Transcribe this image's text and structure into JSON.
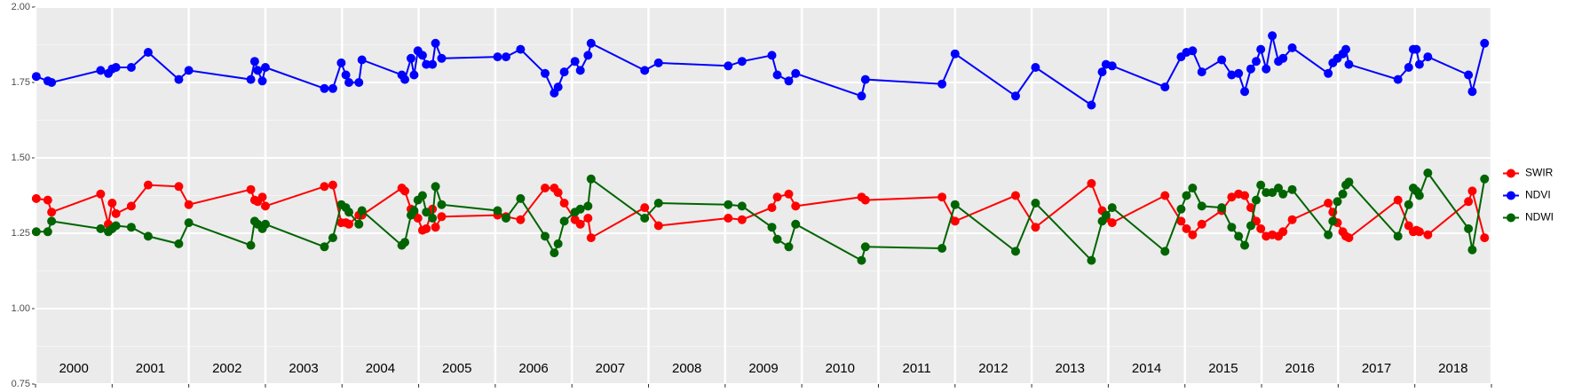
{
  "chart_data": {
    "type": "line",
    "x": [
      2000.01,
      2000.16,
      2000.21,
      2000.85,
      2000.95,
      2001.0,
      2001.05,
      2001.25,
      2001.47,
      2001.87,
      2002.0,
      2002.81,
      2002.86,
      2002.9,
      2002.96,
      2003.0,
      2003.77,
      2003.88,
      2003.99,
      2004.05,
      2004.09,
      2004.22,
      2004.26,
      2004.78,
      2004.82,
      2004.9,
      2004.94,
      2004.99,
      2005.05,
      2005.1,
      2005.18,
      2005.22,
      2005.3,
      2006.03,
      2006.14,
      2006.33,
      2006.65,
      2006.77,
      2006.82,
      2006.9,
      2007.04,
      2007.11,
      2007.21,
      2007.25,
      2007.95,
      2008.13,
      2009.04,
      2009.22,
      2009.61,
      2009.68,
      2009.83,
      2009.92,
      2010.78,
      2010.83,
      2011.83,
      2012.0,
      2012.79,
      2013.05,
      2013.78,
      2013.92,
      2013.97,
      2014.05,
      2014.74,
      2014.95,
      2015.02,
      2015.1,
      2015.22,
      2015.48,
      2015.61,
      2015.7,
      2015.78,
      2015.86,
      2015.93,
      2015.99,
      2016.06,
      2016.14,
      2016.22,
      2016.28,
      2016.4,
      2016.87,
      2016.93,
      2016.99,
      2017.06,
      2017.1,
      2017.14,
      2017.78,
      2017.92,
      2017.98,
      2018.02,
      2018.06,
      2018.17,
      2018.7,
      2018.75,
      2018.91
    ],
    "series": [
      {
        "name": "SWIR",
        "color": "#ff0000",
        "values": [
          1.365,
          1.36,
          1.32,
          1.38,
          1.28,
          1.35,
          1.315,
          1.34,
          1.41,
          1.405,
          1.345,
          1.395,
          1.36,
          1.355,
          1.37,
          1.34,
          1.405,
          1.41,
          1.285,
          1.285,
          1.28,
          1.31,
          1.31,
          1.4,
          1.39,
          1.33,
          1.32,
          1.3,
          1.26,
          1.265,
          1.33,
          1.27,
          1.305,
          1.31,
          1.305,
          1.295,
          1.4,
          1.4,
          1.385,
          1.35,
          1.295,
          1.28,
          1.3,
          1.235,
          1.335,
          1.275,
          1.3,
          1.295,
          1.335,
          1.37,
          1.38,
          1.34,
          1.37,
          1.36,
          1.37,
          1.29,
          1.375,
          1.27,
          1.415,
          1.325,
          1.3,
          1.285,
          1.375,
          1.29,
          1.265,
          1.245,
          1.28,
          1.325,
          1.37,
          1.38,
          1.375,
          1.335,
          1.29,
          1.265,
          1.24,
          1.245,
          1.24,
          1.255,
          1.295,
          1.35,
          1.32,
          1.285,
          1.255,
          1.24,
          1.235,
          1.36,
          1.275,
          1.255,
          1.26,
          1.255,
          1.245,
          1.355,
          1.39,
          1.235
        ]
      },
      {
        "name": "NDVI",
        "color": "#0000ff",
        "values": [
          1.77,
          1.755,
          1.75,
          1.79,
          1.78,
          1.795,
          1.8,
          1.8,
          1.85,
          1.76,
          1.79,
          1.76,
          1.82,
          1.79,
          1.755,
          1.8,
          1.73,
          1.73,
          1.815,
          1.775,
          1.75,
          1.75,
          1.825,
          1.775,
          1.76,
          1.83,
          1.775,
          1.855,
          1.84,
          1.81,
          1.81,
          1.88,
          1.83,
          1.835,
          1.835,
          1.86,
          1.78,
          1.715,
          1.735,
          1.785,
          1.82,
          1.79,
          1.84,
          1.88,
          1.79,
          1.815,
          1.805,
          1.82,
          1.84,
          1.775,
          1.755,
          1.78,
          1.705,
          1.76,
          1.745,
          1.845,
          1.705,
          1.8,
          1.675,
          1.785,
          1.81,
          1.805,
          1.735,
          1.835,
          1.85,
          1.855,
          1.785,
          1.825,
          1.775,
          1.78,
          1.72,
          1.795,
          1.82,
          1.86,
          1.795,
          1.905,
          1.82,
          1.83,
          1.865,
          1.78,
          1.815,
          1.83,
          1.845,
          1.86,
          1.81,
          1.76,
          1.8,
          1.86,
          1.86,
          1.81,
          1.835,
          1.775,
          1.72,
          1.88
        ]
      },
      {
        "name": "NDWI",
        "color": "#006400",
        "values": [
          1.255,
          1.255,
          1.29,
          1.265,
          1.255,
          1.265,
          1.275,
          1.27,
          1.24,
          1.215,
          1.285,
          1.21,
          1.29,
          1.28,
          1.265,
          1.28,
          1.205,
          1.235,
          1.345,
          1.335,
          1.32,
          1.28,
          1.325,
          1.21,
          1.22,
          1.31,
          1.325,
          1.36,
          1.375,
          1.32,
          1.3,
          1.405,
          1.345,
          1.325,
          1.3,
          1.365,
          1.24,
          1.185,
          1.215,
          1.29,
          1.32,
          1.33,
          1.34,
          1.43,
          1.3,
          1.35,
          1.345,
          1.34,
          1.27,
          1.23,
          1.205,
          1.28,
          1.16,
          1.205,
          1.2,
          1.345,
          1.19,
          1.35,
          1.16,
          1.29,
          1.31,
          1.335,
          1.19,
          1.33,
          1.375,
          1.4,
          1.34,
          1.335,
          1.27,
          1.24,
          1.21,
          1.275,
          1.36,
          1.41,
          1.385,
          1.385,
          1.4,
          1.38,
          1.395,
          1.245,
          1.29,
          1.355,
          1.38,
          1.41,
          1.42,
          1.24,
          1.345,
          1.4,
          1.39,
          1.375,
          1.45,
          1.265,
          1.195,
          1.43
        ]
      }
    ],
    "xlim": [
      2000,
      2019
    ],
    "xticks": [
      2000,
      2001,
      2002,
      2003,
      2004,
      2005,
      2006,
      2007,
      2008,
      2009,
      2010,
      2011,
      2012,
      2013,
      2014,
      2015,
      2016,
      2017,
      2018,
      2019
    ],
    "ylim": [
      0.75,
      2.0
    ],
    "yticks": [
      {
        "value": 0.75,
        "label": "0.75"
      },
      {
        "value": 1.0,
        "label": "1.00"
      },
      {
        "value": 1.25,
        "label": "1.25"
      },
      {
        "value": 1.5,
        "label": "1.50"
      },
      {
        "value": 1.75,
        "label": "1.75"
      },
      {
        "value": 2.0,
        "label": "2.00"
      }
    ],
    "y_minor_ticks": [
      0.875,
      1.125,
      1.375,
      1.625,
      1.875
    ],
    "year_labels": [
      "2000",
      "2001",
      "2002",
      "2003",
      "2004",
      "2005",
      "2006",
      "2007",
      "2008",
      "2009",
      "2010",
      "2011",
      "2012",
      "2013",
      "2014",
      "2015",
      "2016",
      "2017",
      "2018"
    ],
    "grid": true,
    "legend": "right"
  }
}
